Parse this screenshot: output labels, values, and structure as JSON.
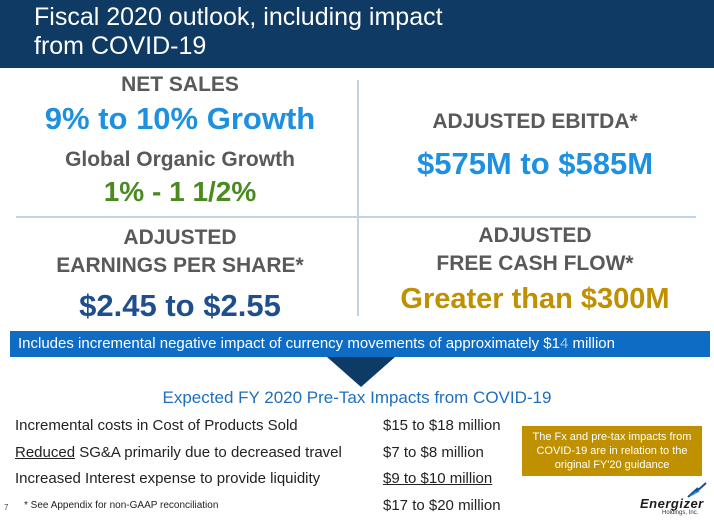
{
  "header": {
    "title_line1": "Fiscal 2020 outlook, including impact",
    "title_line2": "from COVID-19"
  },
  "quadrants": {
    "net_sales": {
      "label": "NET SALES",
      "value": "9% to 10% Growth",
      "sub_label": "Global Organic Growth",
      "sub_value": "1% - 1 1/2%"
    },
    "ebitda": {
      "label": "ADJUSTED EBITDA*",
      "value": "$575M to $585M"
    },
    "eps": {
      "label_line1": "ADJUSTED",
      "label_line2": "EARNINGS PER SHARE*",
      "value": "$2.45 to $2.55"
    },
    "fcf": {
      "label_line1": "ADJUSTED",
      "label_line2": "FREE CASH FLOW*",
      "value": "Greater than $300M"
    }
  },
  "banner": {
    "text_before": "Includes incremental negative impact of currency movements of approximately $1",
    "text_highlight": "4",
    "text_after": " million"
  },
  "impacts": {
    "title": "Expected FY 2020 Pre-Tax Impacts from COVID-19",
    "rows": [
      {
        "label_prefix": "",
        "label": "Incremental costs in Cost of Products Sold",
        "value": "$15 to $18 million"
      },
      {
        "label_prefix": "Reduced",
        "label": " SG&A primarily due to decreased travel",
        "value": "$7 to $8 million"
      },
      {
        "label_prefix": "",
        "label": "Increased Interest expense to provide liquidity",
        "value": "$9 to $10 million"
      },
      {
        "label_prefix": "",
        "label": "",
        "value": "$17 to $20 million"
      }
    ]
  },
  "footnote": {
    "page_number": "7",
    "text": "* See Appendix for non-GAAP reconciliation"
  },
  "fx_note": {
    "text": "The Fx and pre-tax impacts from COVID-19 are in relation to the original FY'20 guidance"
  },
  "logo": {
    "wordmark": "Energizer",
    "subtext": "Holdings, Inc."
  },
  "colors": {
    "header_bg": "#0f3a63",
    "accent_blue": "#1e90e0",
    "navy": "#1e4f8c",
    "green": "#4a8a21",
    "gold": "#bf9000",
    "banner_bg": "#0e6cc4"
  }
}
